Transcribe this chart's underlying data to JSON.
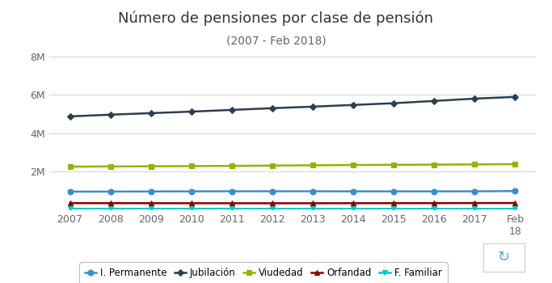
{
  "title": "Número de pensiones por clase de pensión",
  "subtitle": "(2007 - Feb 2018)",
  "x_labels": [
    "2007",
    "2008",
    "2009",
    "2010",
    "2011",
    "2012",
    "2013",
    "2014",
    "2015",
    "2016",
    "2017",
    "Feb\n18"
  ],
  "x_values": [
    0,
    1,
    2,
    3,
    4,
    5,
    6,
    7,
    8,
    9,
    10,
    11
  ],
  "series": {
    "I. Permanente": {
      "color": "#3b8ecb",
      "marker": "o",
      "markersize": 5,
      "linewidth": 1.8,
      "values": [
        930000,
        935000,
        940000,
        945000,
        950000,
        950000,
        950000,
        945000,
        945000,
        945000,
        948000,
        960000
      ]
    },
    "Jubilación": {
      "color": "#2c3e50",
      "marker": "D",
      "markersize": 4,
      "linewidth": 1.8,
      "values": [
        4870000,
        4960000,
        5040000,
        5120000,
        5210000,
        5300000,
        5380000,
        5470000,
        5560000,
        5680000,
        5800000,
        5890000
      ]
    },
    "Viudedad": {
      "color": "#8db600",
      "marker": "s",
      "markersize": 5,
      "linewidth": 1.8,
      "values": [
        2240000,
        2250000,
        2258000,
        2268000,
        2278000,
        2295000,
        2310000,
        2325000,
        2335000,
        2345000,
        2358000,
        2370000
      ]
    },
    "Orfandad": {
      "color": "#8b0000",
      "marker": "^",
      "markersize": 5,
      "linewidth": 1.8,
      "values": [
        330000,
        328000,
        326000,
        324000,
        323000,
        323000,
        323000,
        325000,
        327000,
        330000,
        334000,
        337000
      ]
    },
    "F. Familiar": {
      "color": "#00c8c8",
      "marker": "v",
      "markersize": 5,
      "linewidth": 1.8,
      "values": [
        35000,
        34500,
        34000,
        33500,
        33000,
        32500,
        32200,
        31800,
        31500,
        31200,
        31000,
        30800
      ]
    }
  },
  "ylim": [
    0,
    8000000
  ],
  "yticks": [
    0,
    2000000,
    4000000,
    6000000,
    8000000
  ],
  "ytick_labels": [
    "",
    "2M",
    "4M",
    "6M",
    "8M"
  ],
  "background_color": "#ffffff",
  "grid_color": "#d8d8d8",
  "title_fontsize": 13,
  "subtitle_fontsize": 10,
  "tick_fontsize": 9,
  "legend_fontsize": 8.5
}
